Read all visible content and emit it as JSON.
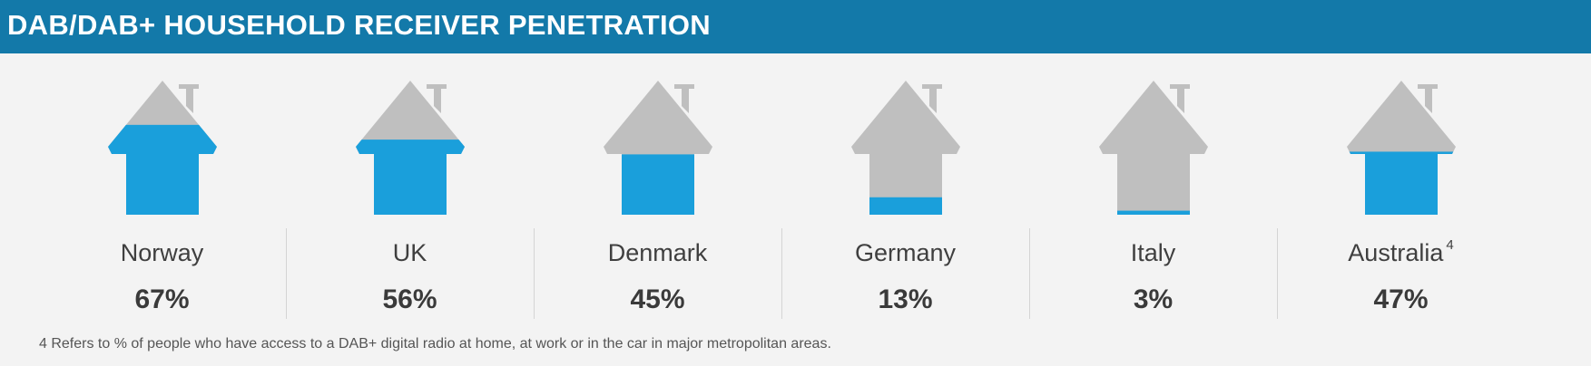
{
  "header": {
    "title": "DAB/DAB+ HOUSEHOLD RECEIVER PENETRATION"
  },
  "colors": {
    "header_bg": "#1379a9",
    "fill": "#1a9fdb",
    "empty": "#bfbfbf"
  },
  "chart_data": {
    "type": "bar",
    "title": "DAB/DAB+ HOUSEHOLD RECEIVER PENETRATION",
    "categories": [
      "Norway",
      "UK",
      "Denmark",
      "Germany",
      "Italy",
      "Australia"
    ],
    "values": [
      67,
      56,
      45,
      13,
      3,
      47
    ],
    "value_labels": [
      "67%",
      "56%",
      "45%",
      "13%",
      "3%",
      "47%"
    ],
    "category_notes": [
      "",
      "",
      "",
      "",
      "",
      "4"
    ],
    "ylim": [
      0,
      100
    ]
  },
  "footnote": "4 Refers to % of people who have access to a DAB+ digital radio at home, at work or in the car in major metropolitan areas."
}
